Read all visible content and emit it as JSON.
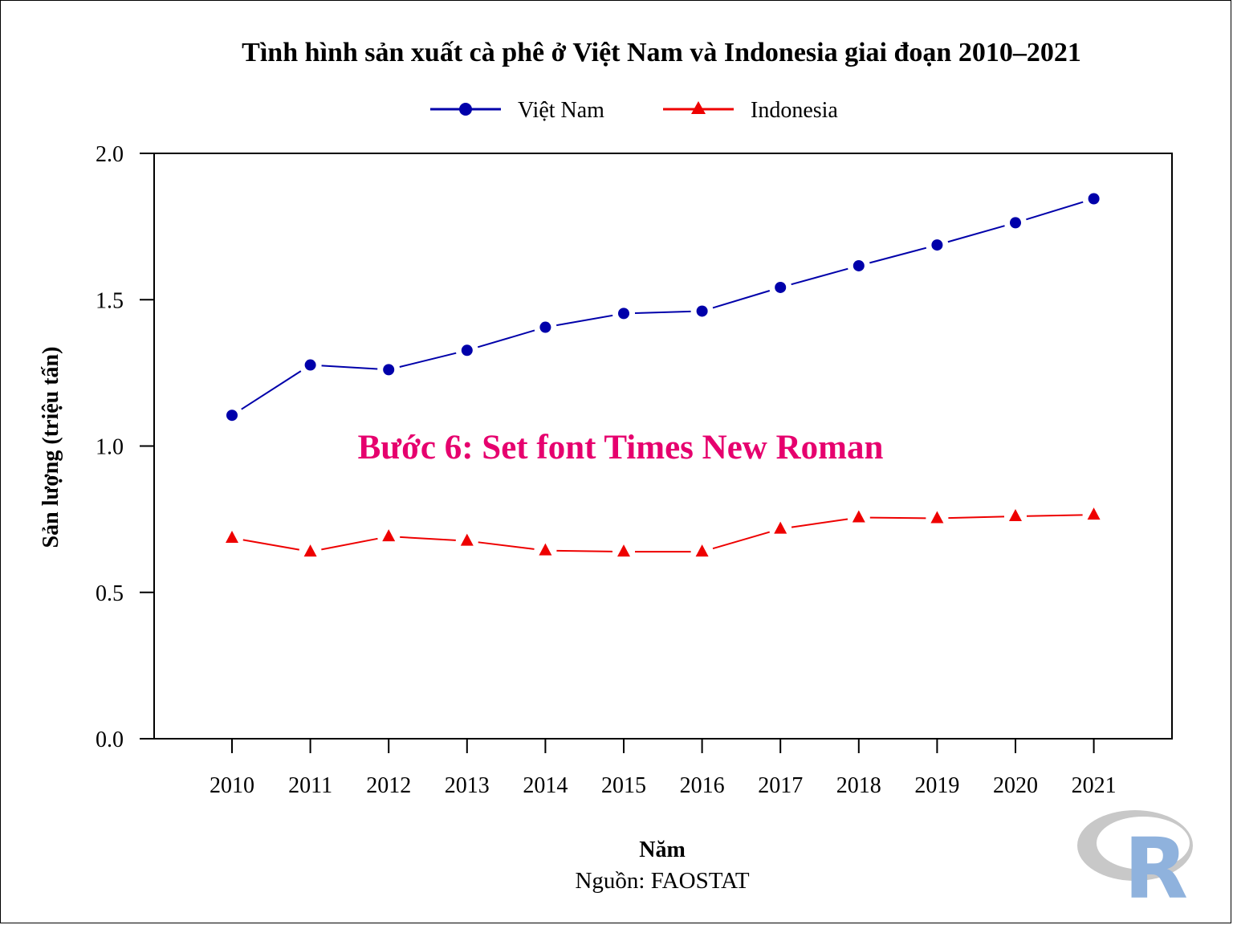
{
  "chart_data": {
    "type": "line",
    "title": "Tình hình sản xuất cà phê ở Việt Nam và Indonesia giai đoạn 2010–2021",
    "xlabel": "Năm",
    "ylabel": "Sản lượng (triệu tấn)",
    "caption": "Nguồn: FAOSTAT",
    "x": [
      "2010",
      "2011",
      "2012",
      "2013",
      "2014",
      "2015",
      "2016",
      "2017",
      "2018",
      "2019",
      "2020",
      "2021"
    ],
    "ylim": [
      0,
      2
    ],
    "yticks": [
      "0.0",
      "0.5",
      "1.0",
      "1.5",
      "2.0"
    ],
    "legend_position": "top-center",
    "grid": false,
    "series": [
      {
        "name": "Việt Nam",
        "color": "#0000aa",
        "marker": "circle",
        "values": [
          1.105,
          1.277,
          1.261,
          1.327,
          1.406,
          1.453,
          1.461,
          1.542,
          1.616,
          1.687,
          1.763,
          1.845
        ]
      },
      {
        "name": "Indonesia",
        "color": "#ee0000",
        "marker": "triangle",
        "values": [
          0.686,
          0.639,
          0.691,
          0.676,
          0.643,
          0.639,
          0.639,
          0.717,
          0.756,
          0.753,
          0.76,
          0.765
        ]
      }
    ]
  },
  "overlay": {
    "text": "Bước 6: Set font Times New Roman",
    "color": "#e6006e"
  },
  "watermark": {
    "label": "R logo",
    "text": "R"
  }
}
